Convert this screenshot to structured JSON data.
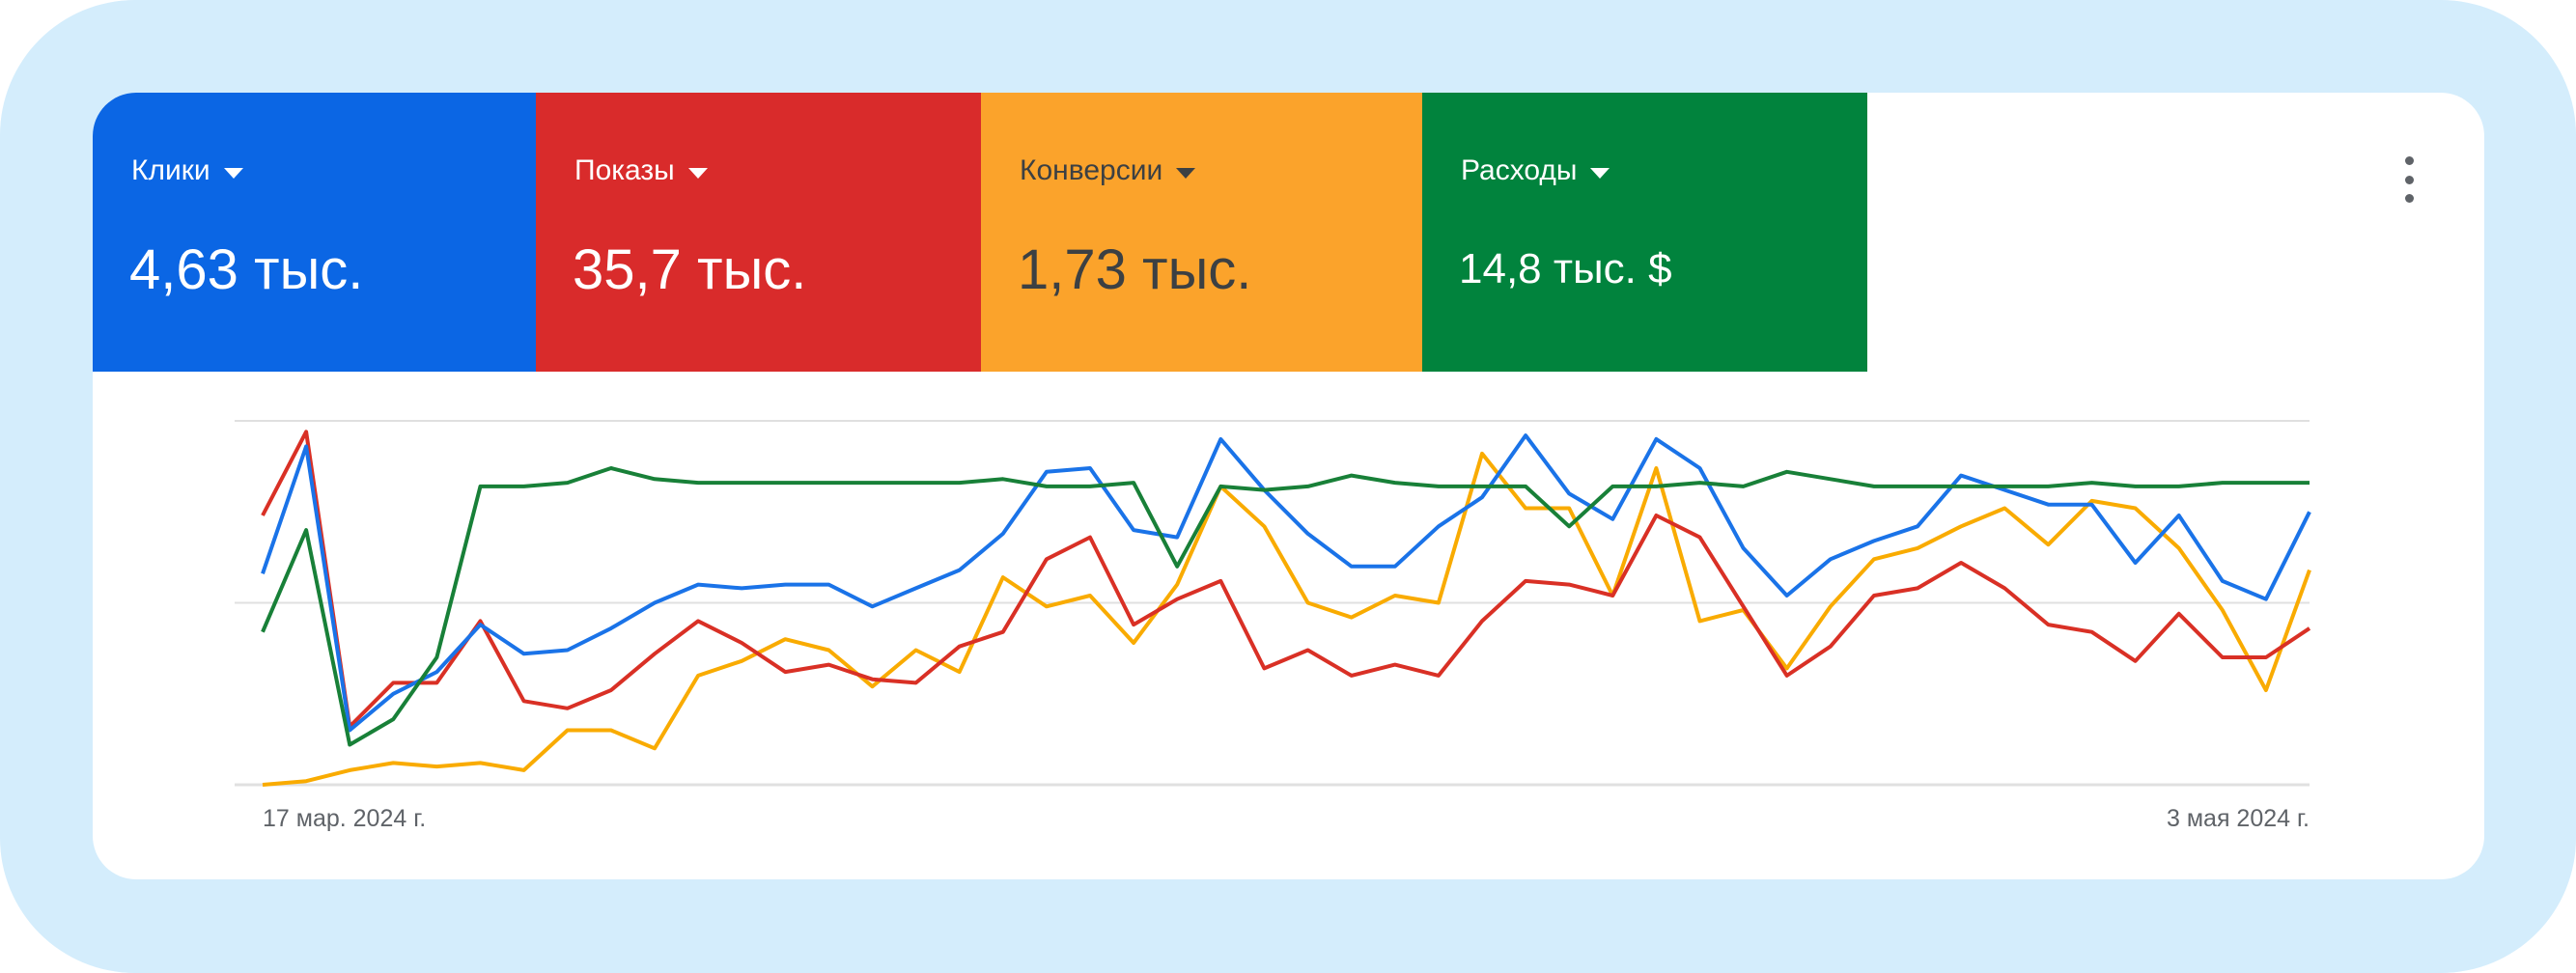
{
  "colors": {
    "background": "#d4edfc",
    "clicks": "#0b66e4",
    "impressions": "#d92b2b",
    "conversions": "#fba32b",
    "cost": "#01833d",
    "line_clicks": "#1a73e8",
    "line_impressions": "#d93025",
    "line_conversions": "#f9ab00",
    "line_cost": "#188038",
    "grid": "#e0e0e0"
  },
  "metrics": [
    {
      "label": "Клики",
      "value": "4,63 тыс.",
      "icon": "caret-down-icon"
    },
    {
      "label": "Показы",
      "value": "35,7 тыс.",
      "icon": "caret-down-icon"
    },
    {
      "label": "Конверсии",
      "value": "1,73 тыс.",
      "icon": "caret-down-icon"
    },
    {
      "label": "Расходы",
      "value": "14,8 тыс. $",
      "icon": "caret-down-icon"
    }
  ],
  "menu_icon": "more-vert-icon",
  "chart_data": {
    "type": "line",
    "x_start": "17 мар. 2024 г.",
    "x_end": "3 мая 2024 г.",
    "tick_labels": [
      "17 мар. 2024 г.",
      "3 мая 2024 г."
    ],
    "ylim": [
      0,
      100
    ],
    "grid": true,
    "y_axis_labels": false,
    "series": [
      {
        "name": "Клики",
        "values": [
          58,
          93,
          15,
          25,
          31,
          44,
          36,
          37,
          43,
          50,
          55,
          54,
          55,
          55,
          49,
          54,
          59,
          69,
          86,
          87,
          70,
          68,
          95,
          81,
          69,
          60,
          60,
          71,
          79,
          96,
          80,
          73,
          95,
          87,
          65,
          52,
          62,
          67,
          71,
          85,
          81,
          77,
          77,
          61,
          74,
          56,
          51,
          75
        ]
      },
      {
        "name": "Показы",
        "values": [
          74,
          97,
          16,
          28,
          28,
          45,
          23,
          21,
          26,
          36,
          45,
          39,
          31,
          33,
          29,
          28,
          38,
          42,
          62,
          68,
          44,
          51,
          56,
          32,
          37,
          30,
          33,
          30,
          45,
          56,
          55,
          52,
          74,
          68,
          49,
          30,
          38,
          52,
          54,
          61,
          54,
          44,
          42,
          34,
          47,
          35,
          35,
          43
        ]
      },
      {
        "name": "Конверсии",
        "values": [
          0,
          1,
          4,
          6,
          5,
          6,
          4,
          15,
          15,
          10,
          30,
          34,
          40,
          37,
          27,
          37,
          31,
          57,
          49,
          52,
          39,
          55,
          82,
          71,
          50,
          46,
          52,
          50,
          91,
          76,
          76,
          52,
          87,
          45,
          48,
          32,
          49,
          62,
          65,
          71,
          76,
          66,
          78,
          76,
          65,
          48,
          26,
          59
        ]
      },
      {
        "name": "Расходы",
        "values": [
          42,
          70,
          11,
          18,
          35,
          82,
          82,
          83,
          87,
          84,
          83,
          83,
          83,
          83,
          83,
          83,
          83,
          84,
          82,
          82,
          83,
          60,
          82,
          81,
          82,
          85,
          83,
          82,
          82,
          82,
          71,
          82,
          82,
          83,
          82,
          86,
          84,
          82,
          82,
          82,
          82,
          82,
          83,
          82,
          82,
          83,
          83,
          83
        ]
      }
    ]
  }
}
